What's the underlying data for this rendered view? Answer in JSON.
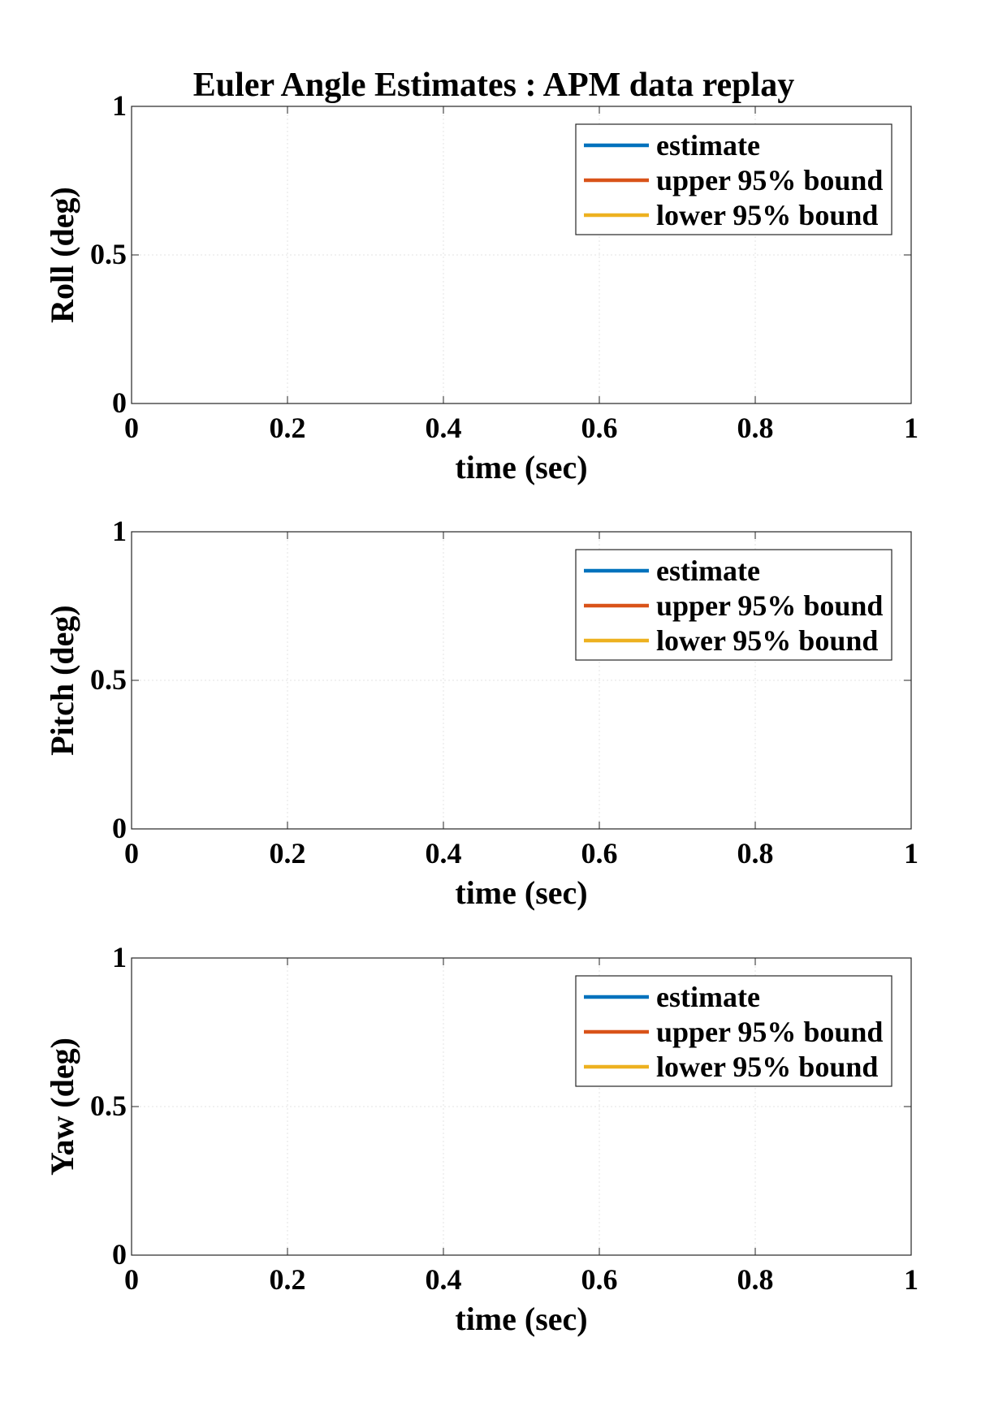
{
  "figure": {
    "title": "Euler Angle Estimates : APM data replay"
  },
  "chart_data": [
    {
      "type": "line",
      "xlabel": "time (sec)",
      "ylabel": "Roll (deg)",
      "xlim": [
        0,
        1
      ],
      "ylim": [
        0,
        1
      ],
      "xticks": [
        "0",
        "0.2",
        "0.4",
        "0.6",
        "0.8",
        "1"
      ],
      "yticks": [
        "0",
        "0.5",
        "1"
      ],
      "grid": true,
      "legend_position": "top-right",
      "series": [
        {
          "name": "estimate",
          "color": "#0072BD",
          "x": [],
          "y": []
        },
        {
          "name": "upper 95% bound",
          "color": "#D95319",
          "x": [],
          "y": []
        },
        {
          "name": "lower 95% bound",
          "color": "#EDB120",
          "x": [],
          "y": []
        }
      ]
    },
    {
      "type": "line",
      "xlabel": "time (sec)",
      "ylabel": "Pitch (deg)",
      "xlim": [
        0,
        1
      ],
      "ylim": [
        0,
        1
      ],
      "xticks": [
        "0",
        "0.2",
        "0.4",
        "0.6",
        "0.8",
        "1"
      ],
      "yticks": [
        "0",
        "0.5",
        "1"
      ],
      "grid": true,
      "legend_position": "top-right",
      "series": [
        {
          "name": "estimate",
          "color": "#0072BD",
          "x": [],
          "y": []
        },
        {
          "name": "upper 95% bound",
          "color": "#D95319",
          "x": [],
          "y": []
        },
        {
          "name": "lower 95% bound",
          "color": "#EDB120",
          "x": [],
          "y": []
        }
      ]
    },
    {
      "type": "line",
      "xlabel": "time (sec)",
      "ylabel": "Yaw (deg)",
      "xlim": [
        0,
        1
      ],
      "ylim": [
        0,
        1
      ],
      "xticks": [
        "0",
        "0.2",
        "0.4",
        "0.6",
        "0.8",
        "1"
      ],
      "yticks": [
        "0",
        "0.5",
        "1"
      ],
      "grid": true,
      "legend_position": "top-right",
      "series": [
        {
          "name": "estimate",
          "color": "#0072BD",
          "x": [],
          "y": []
        },
        {
          "name": "upper 95% bound",
          "color": "#D95319",
          "x": [],
          "y": []
        },
        {
          "name": "lower 95% bound",
          "color": "#EDB120",
          "x": [],
          "y": []
        }
      ]
    }
  ]
}
